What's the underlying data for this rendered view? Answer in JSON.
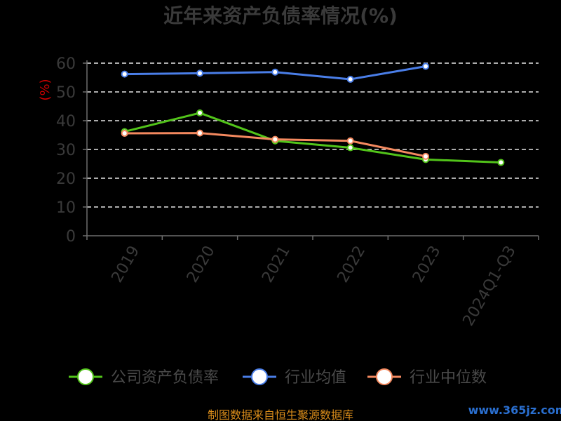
{
  "chart_data": {
    "type": "line",
    "title": "近年来资产负债率情况(%)",
    "ylabel": "(%)",
    "xlabel": "",
    "categories": [
      "2019",
      "2020",
      "2021",
      "2022",
      "2023",
      "2024Q1-Q3"
    ],
    "yticks": [
      "0",
      "10",
      "20",
      "30",
      "40",
      "50",
      "60"
    ],
    "ylim": [
      0,
      60
    ],
    "grid": true,
    "legend_position": "bottom",
    "series": [
      {
        "name": "公司资产负债率",
        "color": "#52c41a",
        "values": [
          36.2,
          42.7,
          33.0,
          30.6,
          26.5,
          25.5
        ]
      },
      {
        "name": "行业均值",
        "color": "#4a7ee8",
        "values": [
          56.2,
          56.5,
          56.9,
          54.4,
          58.9,
          null
        ]
      },
      {
        "name": "行业中位数",
        "color": "#f4895f",
        "values": [
          35.6,
          35.7,
          33.5,
          33.0,
          27.6,
          null
        ]
      }
    ]
  },
  "footer": {
    "source": "制图数据来自恒生聚源数据库",
    "watermark": "www.365jz.com"
  }
}
